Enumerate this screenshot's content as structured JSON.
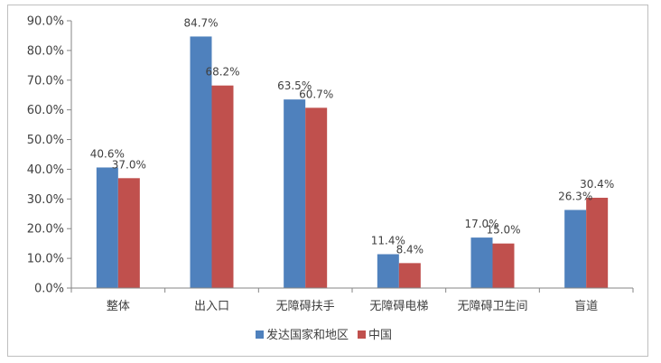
{
  "chart_data": {
    "type": "bar",
    "categories": [
      "整体",
      "出入口",
      "无障碍扶手",
      "无障碍电梯",
      "无障碍卫生间",
      "盲道"
    ],
    "series": [
      {
        "name": "发达国家和地区",
        "color": "#4f81bd",
        "values": [
          40.6,
          84.7,
          63.5,
          11.4,
          17.0,
          26.3
        ],
        "labels": [
          "40.6%",
          "84.7%",
          "63.5%",
          "11.4%",
          "17.0%",
          "26.3%"
        ]
      },
      {
        "name": "中国",
        "color": "#c0504d",
        "values": [
          37.0,
          68.2,
          60.7,
          8.4,
          15.0,
          30.4
        ],
        "labels": [
          "37.0%",
          "68.2%",
          "60.7%",
          "8.4%",
          "15.0%",
          "30.4%"
        ]
      }
    ],
    "ylim": [
      0,
      90
    ],
    "yticks": [
      0,
      10,
      20,
      30,
      40,
      50,
      60,
      70,
      80,
      90
    ],
    "ytick_labels": [
      "0.0%",
      "10.0%",
      "20.0%",
      "30.0%",
      "40.0%",
      "50.0%",
      "60.0%",
      "70.0%",
      "80.0%",
      "90.0%"
    ],
    "grid": false,
    "legend_position": "bottom"
  }
}
